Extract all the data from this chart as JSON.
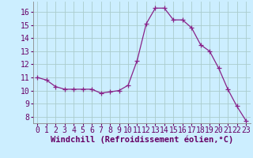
{
  "x": [
    0,
    1,
    2,
    3,
    4,
    5,
    6,
    7,
    8,
    9,
    10,
    11,
    12,
    13,
    14,
    15,
    16,
    17,
    18,
    19,
    20,
    21,
    22,
    23
  ],
  "y": [
    11.0,
    10.8,
    10.3,
    10.1,
    10.1,
    10.1,
    10.1,
    9.8,
    9.9,
    10.0,
    10.4,
    12.3,
    15.1,
    16.3,
    16.3,
    15.4,
    15.4,
    14.8,
    13.5,
    13.0,
    11.7,
    10.1,
    8.8,
    7.7
  ],
  "line_color": "#882288",
  "marker": "+",
  "marker_size": 4,
  "bg_color": "#cceeff",
  "grid_color": "#aacccc",
  "xlabel": "Windchill (Refroidissement éolien,°C)",
  "xlim": [
    -0.5,
    23.5
  ],
  "ylim": [
    7.5,
    16.8
  ],
  "yticks": [
    8,
    9,
    10,
    11,
    12,
    13,
    14,
    15,
    16
  ],
  "xticks": [
    0,
    1,
    2,
    3,
    4,
    5,
    6,
    7,
    8,
    9,
    10,
    11,
    12,
    13,
    14,
    15,
    16,
    17,
    18,
    19,
    20,
    21,
    22,
    23
  ],
  "tick_fontsize": 7,
  "label_fontsize": 7.5
}
